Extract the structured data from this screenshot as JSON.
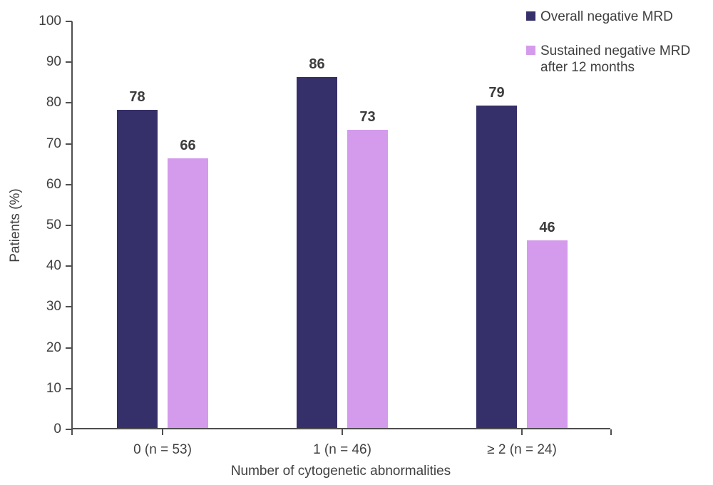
{
  "chart_data": {
    "type": "bar",
    "title": "",
    "xlabel": "Number of cytogenetic abnormalities",
    "ylabel": "Patients (%)",
    "categories": [
      "0 (n = 53)",
      "1 (n = 46)",
      "≥ 2 (n = 24)"
    ],
    "series": [
      {
        "name": "Overall negative MRD",
        "color": "#353069",
        "values": [
          78,
          86,
          79
        ]
      },
      {
        "name": "Sustained negative MRD after 12 months",
        "color": "#d49bec",
        "values": [
          66,
          73,
          46
        ]
      }
    ],
    "ylim": [
      0,
      100
    ],
    "ytick_step": 10,
    "grid": false,
    "legend_position": "top-right",
    "bar_value_labels": true
  },
  "colors": {
    "axis": "#4f4f4f",
    "text": "#3f3f3f",
    "background": "#ffffff"
  }
}
